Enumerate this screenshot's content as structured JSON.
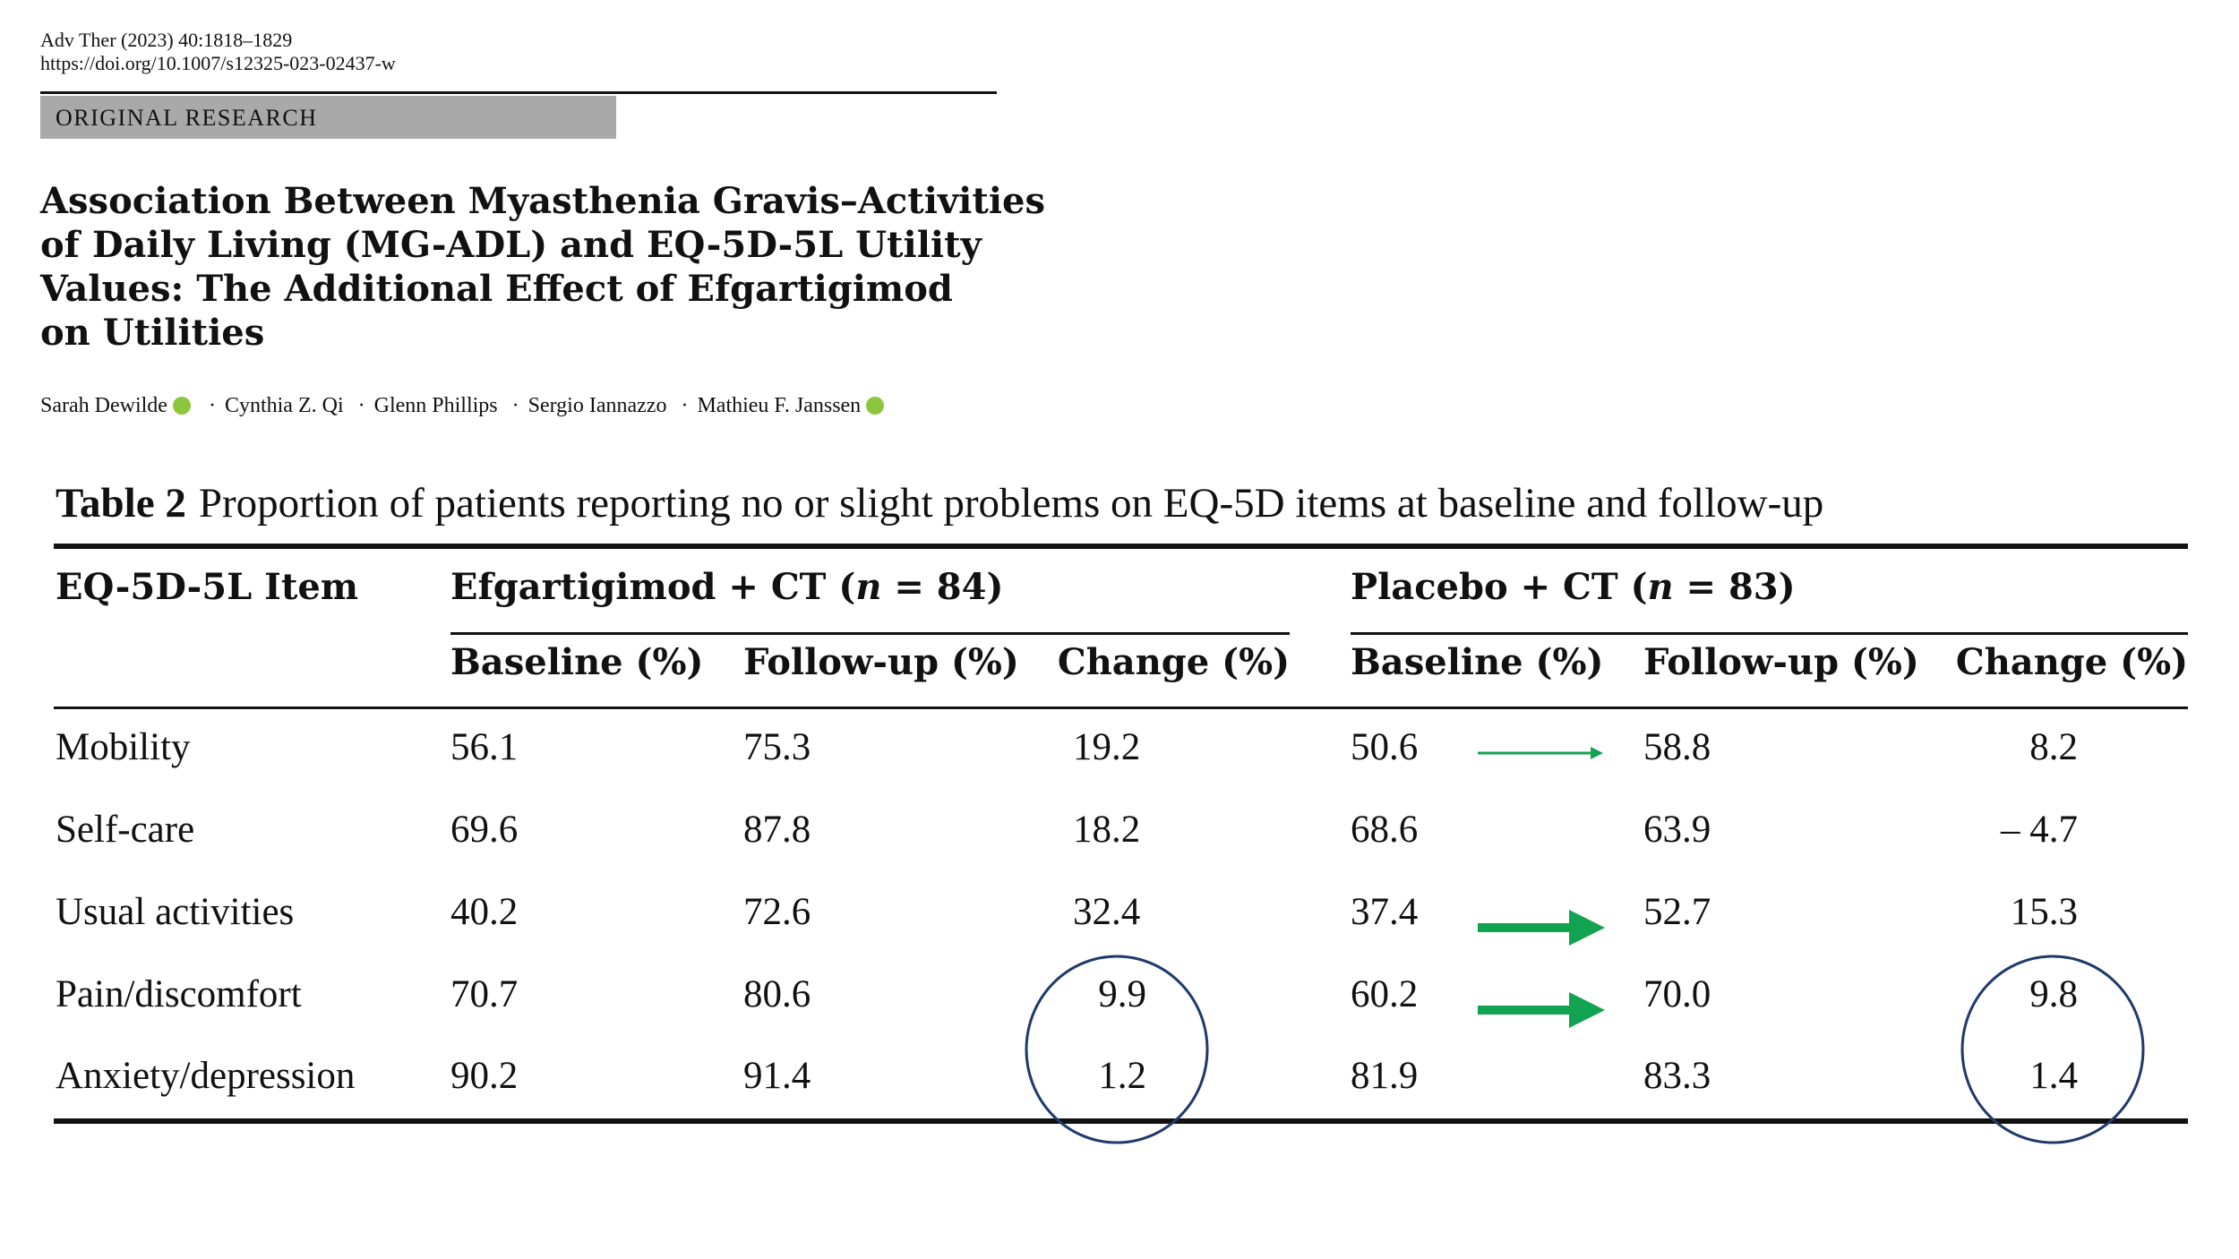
{
  "journal": {
    "citation": "Adv Ther (2023) 40:1818–1829",
    "doi": "https://doi.org/10.1007/s12325-023-02437-w"
  },
  "section_label": "ORIGINAL RESEARCH",
  "title_lines": [
    "Association Between Myasthenia Gravis–Activities",
    "of Daily Living (MG-ADL) and EQ-5D-5L Utility",
    "Values: The Additional Effect of Efgartigimod",
    "on Utilities"
  ],
  "authors": [
    "Sarah Dewilde",
    "Cynthia Z. Qi",
    "Glenn Phillips",
    "Sergio Iannazzo",
    "Mathieu F. Janssen"
  ],
  "author_separator": "·",
  "table": {
    "label": "Table 2",
    "caption": "Proportion of patients reporting no or slight problems on EQ-5D items at baseline and follow-up",
    "item_header": "EQ-5D-5L Item",
    "groups": [
      {
        "name": "Efgartigimod + CT",
        "n_prefix": "(",
        "n_symbol": "n",
        "n_suffix": " = 84)"
      },
      {
        "name": "Placebo + CT",
        "n_prefix": "(",
        "n_symbol": "n",
        "n_suffix": " = 83)"
      }
    ],
    "subheaders": [
      "Baseline (%)",
      "Follow-up (%)",
      "Change (%)",
      "Baseline (%)",
      "Follow-up (%)",
      "Change (%)"
    ],
    "rows": [
      {
        "item": "Mobility",
        "values": [
          "56.1",
          "75.3",
          "19.2",
          "50.6",
          "58.8",
          "8.2"
        ]
      },
      {
        "item": "Self-care",
        "values": [
          "69.6",
          "87.8",
          "18.2",
          "68.6",
          "63.9",
          "– 4.7"
        ]
      },
      {
        "item": "Usual activities",
        "values": [
          "40.2",
          "72.6",
          "32.4",
          "37.4",
          "52.7",
          "15.3"
        ]
      },
      {
        "item": "Pain/discomfort",
        "values": [
          "70.7",
          "80.6",
          "9.9",
          "60.2",
          "70.0",
          "9.8"
        ]
      },
      {
        "item": "Anxiety/depression",
        "values": [
          "90.2",
          "91.4",
          "1.2",
          "81.9",
          "83.3",
          "1.4"
        ]
      }
    ]
  },
  "annotations": {
    "arrow_color": "#12a350",
    "circle_color": "#1f3a6b"
  }
}
